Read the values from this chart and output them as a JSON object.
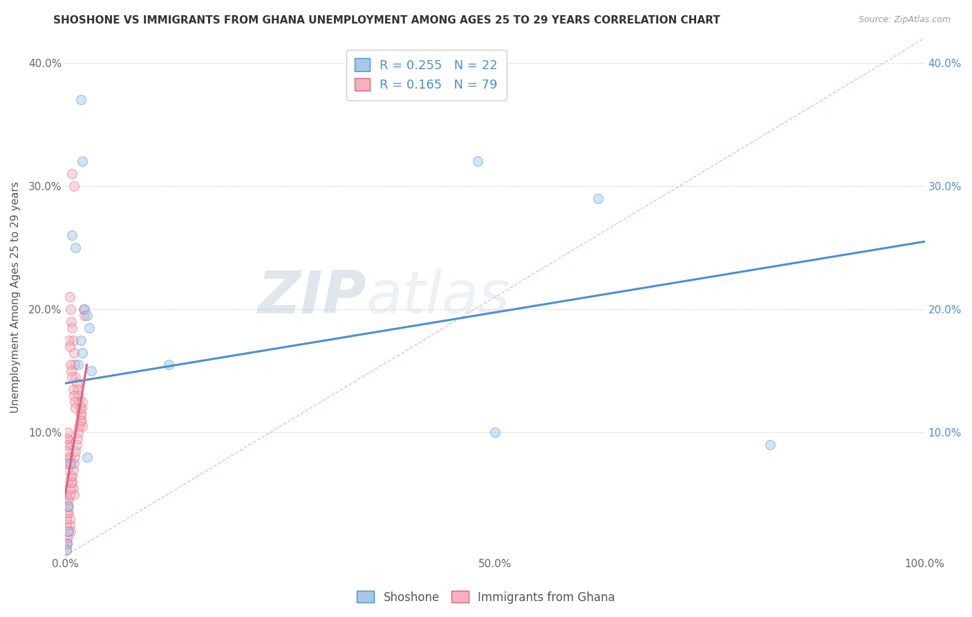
{
  "title": "SHOSHONE VS IMMIGRANTS FROM GHANA UNEMPLOYMENT AMONG AGES 25 TO 29 YEARS CORRELATION CHART",
  "source": "Source: ZipAtlas.com",
  "ylabel": "Unemployment Among Ages 25 to 29 years",
  "shoshone_R": 0.255,
  "shoshone_N": 22,
  "ghana_R": 0.165,
  "ghana_N": 79,
  "shoshone_color": "#a8c8e8",
  "ghana_color": "#f8b0c0",
  "shoshone_line_color": "#4a8fd4",
  "ghana_line_color": "#e0607a",
  "watermark_zip": "ZIP",
  "watermark_atlas": "atlas",
  "shoshone_x": [
    0.018,
    0.02,
    0.008,
    0.012,
    0.022,
    0.025,
    0.028,
    0.018,
    0.02,
    0.015,
    0.03,
    0.025,
    0.48,
    0.5,
    0.82,
    0.62,
    0.12,
    0.006,
    0.004,
    0.003,
    0.002,
    0.001
  ],
  "shoshone_y": [
    0.37,
    0.32,
    0.26,
    0.25,
    0.2,
    0.195,
    0.185,
    0.175,
    0.165,
    0.155,
    0.15,
    0.08,
    0.32,
    0.1,
    0.09,
    0.29,
    0.155,
    0.075,
    0.04,
    0.02,
    0.01,
    0.005
  ],
  "ghana_x": [
    0.005,
    0.006,
    0.007,
    0.008,
    0.009,
    0.01,
    0.011,
    0.012,
    0.013,
    0.014,
    0.015,
    0.016,
    0.017,
    0.018,
    0.019,
    0.02,
    0.021,
    0.022,
    0.004,
    0.005,
    0.006,
    0.007,
    0.008,
    0.009,
    0.01,
    0.011,
    0.012,
    0.003,
    0.004,
    0.005,
    0.006,
    0.007,
    0.008,
    0.009,
    0.01,
    0.002,
    0.003,
    0.004,
    0.005,
    0.006,
    0.001,
    0.002,
    0.003,
    0.004,
    0.005,
    0.001,
    0.002,
    0.003,
    0.004,
    0.001,
    0.002,
    0.003,
    0.001,
    0.002,
    0.001,
    0.002,
    0.001,
    0.001,
    0.002,
    0.003,
    0.004,
    0.005,
    0.006,
    0.007,
    0.008,
    0.009,
    0.01,
    0.011,
    0.012,
    0.013,
    0.014,
    0.015,
    0.016,
    0.017,
    0.018,
    0.019,
    0.02,
    0.008,
    0.01
  ],
  "ghana_y": [
    0.21,
    0.2,
    0.19,
    0.185,
    0.175,
    0.165,
    0.155,
    0.145,
    0.14,
    0.135,
    0.13,
    0.125,
    0.12,
    0.115,
    0.11,
    0.105,
    0.2,
    0.195,
    0.175,
    0.17,
    0.155,
    0.15,
    0.145,
    0.135,
    0.13,
    0.125,
    0.12,
    0.095,
    0.09,
    0.08,
    0.075,
    0.065,
    0.06,
    0.055,
    0.05,
    0.045,
    0.04,
    0.035,
    0.025,
    0.02,
    0.015,
    0.01,
    0.015,
    0.02,
    0.03,
    0.05,
    0.06,
    0.07,
    0.08,
    0.09,
    0.095,
    0.1,
    0.085,
    0.075,
    0.005,
    0.01,
    0.025,
    0.03,
    0.035,
    0.04,
    0.045,
    0.05,
    0.055,
    0.06,
    0.065,
    0.07,
    0.075,
    0.08,
    0.085,
    0.09,
    0.095,
    0.1,
    0.105,
    0.11,
    0.115,
    0.12,
    0.125,
    0.31,
    0.3
  ],
  "shoshone_line_x": [
    0.0,
    1.0
  ],
  "shoshone_line_y": [
    0.14,
    0.255
  ],
  "ghana_line_x": [
    0.0,
    0.025
  ],
  "ghana_line_y": [
    0.05,
    0.155
  ],
  "ref_line_x": [
    0.0,
    1.0
  ],
  "ref_line_y": [
    0.0,
    0.42
  ],
  "xlim": [
    0.0,
    1.0
  ],
  "ylim": [
    0.0,
    0.42
  ],
  "x_ticks": [
    0.0,
    0.1,
    0.2,
    0.3,
    0.4,
    0.5,
    0.6,
    0.7,
    0.8,
    0.9,
    1.0
  ],
  "x_tick_labels": [
    "0.0%",
    "",
    "",
    "",
    "",
    "50.0%",
    "",
    "",
    "",
    "",
    "100.0%"
  ],
  "y_ticks": [
    0.0,
    0.1,
    0.2,
    0.3,
    0.4
  ],
  "y_tick_labels_left": [
    "",
    "10.0%",
    "20.0%",
    "30.0%",
    "40.0%"
  ],
  "y_tick_labels_right": [
    "",
    "10.0%",
    "20.0%",
    "30.0%",
    "40.0%"
  ],
  "marker_size": 100,
  "marker_alpha": 0.5,
  "title_fontsize": 11,
  "source_fontsize": 9,
  "ylabel_fontsize": 11,
  "tick_fontsize": 11
}
